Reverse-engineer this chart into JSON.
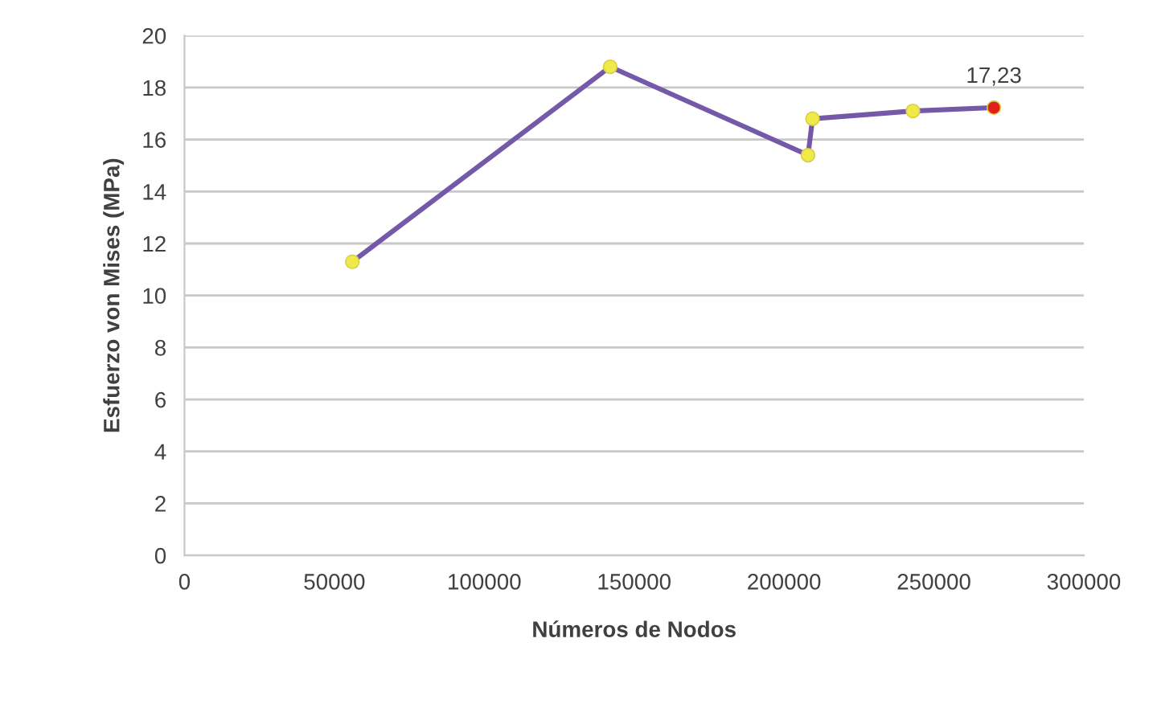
{
  "chart_data": {
    "type": "line",
    "xlabel": "Números de Nodos",
    "ylabel": "Esfuerzo von Mises (MPa)",
    "x": [
      56000,
      142000,
      208000,
      209500,
      243000,
      270000
    ],
    "series": [
      {
        "color": "#7459a8",
        "colors": [
          "#f0e94a",
          "#f0e94a",
          "#f0e94a",
          "#f0e94a",
          "#f0e94a",
          "#e0201a"
        ],
        "values": [
          11.3,
          18.8,
          15.4,
          16.8,
          17.1,
          17.23
        ],
        "value_labels": [
          null,
          null,
          null,
          null,
          null,
          "17,23"
        ]
      }
    ],
    "xlim": [
      0,
      300000
    ],
    "xticks": [
      0,
      50000,
      100000,
      150000,
      200000,
      250000,
      300000
    ],
    "ylim": [
      0,
      20
    ],
    "yticks": [
      0,
      2,
      4,
      6,
      8,
      10,
      12,
      14,
      16,
      18,
      20
    ],
    "grid": "y",
    "marker": "circle",
    "line_style": "solid",
    "legend": false
  }
}
